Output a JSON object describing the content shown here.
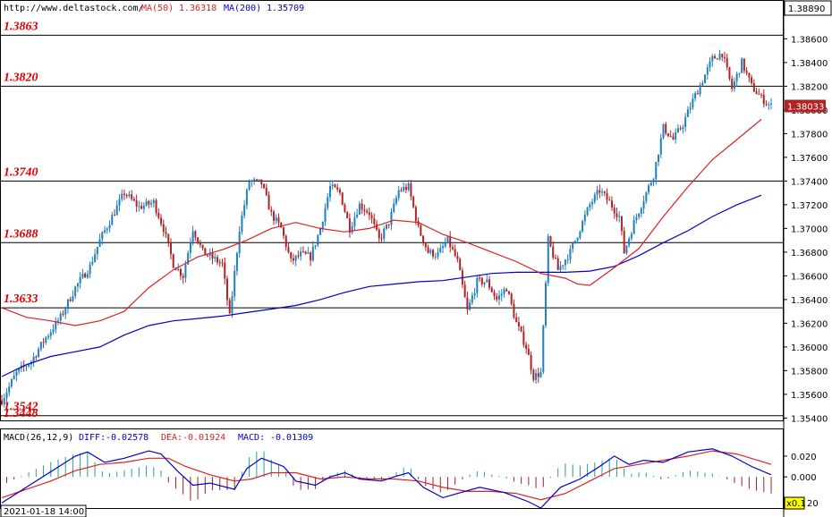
{
  "header": {
    "site": "http://www.deltastock.com/",
    "ma50_label": "MA(50)",
    "ma50_value": "1.36318",
    "ma200_label": "MA(200)",
    "ma200_value": "1.35709"
  },
  "colors": {
    "bull": "#1f7fc0",
    "bear": "#b22222",
    "ma50": "#e02020",
    "ma200": "#0000cc",
    "level_text": "#e00000"
  },
  "macd_header": {
    "name": "MACD(26,12,9)",
    "diff_label": "DIFF:",
    "diff_value": "-0.02578",
    "dea_label": "DEA:",
    "dea_value": "-0.01924",
    "macd_label": "MACD:",
    "macd_value": "-0.01309"
  },
  "footer": {
    "datetime": "2021-01-18 14:00",
    "multiplier": "x0.1",
    "multiplier_tail": "20"
  },
  "chart_data": [
    {
      "type": "candlestick",
      "ylim": [
        1.3538,
        1.3892
      ],
      "y_ticks": [
        "1.38600",
        "1.38400",
        "1.38200",
        "1.38000",
        "1.37800",
        "1.37600",
        "1.37400",
        "1.37200",
        "1.37000",
        "1.36800",
        "1.36600",
        "1.36400",
        "1.36200",
        "1.36000",
        "1.35800",
        "1.35600",
        "1.35400"
      ],
      "top_price_label": "1.38890",
      "current_price_label": "1.38033",
      "current_price": 1.38033,
      "levels": [
        {
          "label": "1.3863",
          "value": 1.3863
        },
        {
          "label": "1.3820",
          "value": 1.382
        },
        {
          "label": "1.3740",
          "value": 1.374
        },
        {
          "label": "1.3688",
          "value": 1.3688
        },
        {
          "label": "1.3633",
          "value": 1.3633
        },
        {
          "label": "1.3542",
          "value": 1.3542
        },
        {
          "label": "1.3448",
          "value": 1.3448
        }
      ],
      "close_path": [
        [
          0,
          1.3555
        ],
        [
          6,
          1.3578
        ],
        [
          12,
          1.3588
        ],
        [
          18,
          1.3608
        ],
        [
          24,
          1.3625
        ],
        [
          30,
          1.365
        ],
        [
          36,
          1.3668
        ],
        [
          40,
          1.369
        ],
        [
          45,
          1.371
        ],
        [
          50,
          1.373
        ],
        [
          56,
          1.3718
        ],
        [
          62,
          1.3722
        ],
        [
          66,
          1.37
        ],
        [
          70,
          1.367
        ],
        [
          74,
          1.366
        ],
        [
          78,
          1.37
        ],
        [
          82,
          1.368
        ],
        [
          86,
          1.3675
        ],
        [
          90,
          1.367
        ],
        [
          93,
          1.3625
        ],
        [
          97,
          1.37
        ],
        [
          101,
          1.374
        ],
        [
          106,
          1.3738
        ],
        [
          110,
          1.3712
        ],
        [
          114,
          1.37
        ],
        [
          118,
          1.3672
        ],
        [
          122,
          1.3678
        ],
        [
          126,
          1.3676
        ],
        [
          130,
          1.37
        ],
        [
          134,
          1.3735
        ],
        [
          138,
          1.373
        ],
        [
          142,
          1.37
        ],
        [
          146,
          1.372
        ],
        [
          150,
          1.3713
        ],
        [
          154,
          1.369
        ],
        [
          158,
          1.3705
        ],
        [
          162,
          1.3732
        ],
        [
          166,
          1.3735
        ],
        [
          170,
          1.37
        ],
        [
          174,
          1.368
        ],
        [
          178,
          1.3678
        ],
        [
          182,
          1.369
        ],
        [
          186,
          1.3672
        ],
        [
          190,
          1.363
        ],
        [
          194,
          1.3655
        ],
        [
          198,
          1.3655
        ],
        [
          202,
          1.364
        ],
        [
          206,
          1.365
        ],
        [
          210,
          1.362
        ],
        [
          214,
          1.36
        ],
        [
          217,
          1.3575
        ],
        [
          220,
          1.3578
        ],
        [
          223,
          1.369
        ],
        [
          227,
          1.3665
        ],
        [
          232,
          1.368
        ],
        [
          236,
          1.37
        ],
        [
          240,
          1.372
        ],
        [
          244,
          1.3732
        ],
        [
          248,
          1.3722
        ],
        [
          252,
          1.371
        ],
        [
          254,
          1.368
        ],
        [
          258,
          1.3705
        ],
        [
          262,
          1.3725
        ],
        [
          266,
          1.3745
        ],
        [
          270,
          1.3785
        ],
        [
          274,
          1.3775
        ],
        [
          278,
          1.3788
        ],
        [
          282,
          1.3808
        ],
        [
          286,
          1.3825
        ],
        [
          290,
          1.3843
        ],
        [
          294,
          1.3848
        ],
        [
          298,
          1.3818
        ],
        [
          302,
          1.384
        ],
        [
          306,
          1.382
        ],
        [
          310,
          1.381
        ],
        [
          314,
          1.3803
        ]
      ],
      "ma50": [
        [
          0,
          1.3633
        ],
        [
          10,
          1.3625
        ],
        [
          20,
          1.3622
        ],
        [
          30,
          1.3618
        ],
        [
          40,
          1.3622
        ],
        [
          50,
          1.363
        ],
        [
          60,
          1.365
        ],
        [
          70,
          1.3665
        ],
        [
          80,
          1.3676
        ],
        [
          90,
          1.3682
        ],
        [
          100,
          1.369
        ],
        [
          110,
          1.37
        ],
        [
          120,
          1.3705
        ],
        [
          130,
          1.37
        ],
        [
          140,
          1.3697
        ],
        [
          150,
          1.37
        ],
        [
          160,
          1.3707
        ],
        [
          170,
          1.3705
        ],
        [
          180,
          1.3695
        ],
        [
          190,
          1.3688
        ],
        [
          200,
          1.368
        ],
        [
          210,
          1.3672
        ],
        [
          220,
          1.3662
        ],
        [
          230,
          1.3658
        ],
        [
          235,
          1.3653
        ],
        [
          240,
          1.3652
        ],
        [
          250,
          1.3667
        ],
        [
          260,
          1.3683
        ],
        [
          270,
          1.371
        ],
        [
          280,
          1.3735
        ],
        [
          290,
          1.3758
        ],
        [
          300,
          1.3775
        ],
        [
          310,
          1.3792
        ]
      ],
      "ma200": [
        [
          0,
          1.3575
        ],
        [
          10,
          1.3585
        ],
        [
          20,
          1.3592
        ],
        [
          30,
          1.3596
        ],
        [
          40,
          1.36
        ],
        [
          50,
          1.361
        ],
        [
          60,
          1.3618
        ],
        [
          70,
          1.3622
        ],
        [
          80,
          1.3624
        ],
        [
          90,
          1.3626
        ],
        [
          100,
          1.3629
        ],
        [
          110,
          1.3632
        ],
        [
          120,
          1.3635
        ],
        [
          130,
          1.364
        ],
        [
          140,
          1.3646
        ],
        [
          150,
          1.3651
        ],
        [
          160,
          1.3653
        ],
        [
          170,
          1.3655
        ],
        [
          180,
          1.3656
        ],
        [
          190,
          1.3659
        ],
        [
          200,
          1.3662
        ],
        [
          210,
          1.3663
        ],
        [
          220,
          1.3663
        ],
        [
          230,
          1.3663
        ],
        [
          240,
          1.3664
        ],
        [
          250,
          1.3668
        ],
        [
          260,
          1.3677
        ],
        [
          270,
          1.3688
        ],
        [
          280,
          1.3698
        ],
        [
          290,
          1.371
        ],
        [
          300,
          1.372
        ],
        [
          310,
          1.3728
        ]
      ]
    },
    {
      "type": "macd",
      "ylim": [
        -0.03,
        0.032
      ],
      "y_ticks": [
        "0.020",
        "0.000"
      ],
      "diff": [
        [
          0,
          -0.025
        ],
        [
          10,
          -0.01
        ],
        [
          20,
          0.005
        ],
        [
          30,
          0.02
        ],
        [
          35,
          0.024
        ],
        [
          42,
          0.014
        ],
        [
          50,
          0.018
        ],
        [
          60,
          0.025
        ],
        [
          65,
          0.022
        ],
        [
          72,
          0.005
        ],
        [
          78,
          -0.008
        ],
        [
          85,
          -0.006
        ],
        [
          95,
          -0.012
        ],
        [
          100,
          0.008
        ],
        [
          106,
          0.018
        ],
        [
          115,
          0.01
        ],
        [
          120,
          -0.004
        ],
        [
          128,
          -0.008
        ],
        [
          134,
          0.0
        ],
        [
          140,
          0.004
        ],
        [
          146,
          -0.002
        ],
        [
          155,
          -0.004
        ],
        [
          160,
          0.0
        ],
        [
          166,
          0.004
        ],
        [
          172,
          -0.01
        ],
        [
          180,
          -0.02
        ],
        [
          186,
          -0.016
        ],
        [
          195,
          -0.01
        ],
        [
          205,
          -0.015
        ],
        [
          215,
          -0.024
        ],
        [
          220,
          -0.03
        ],
        [
          228,
          -0.01
        ],
        [
          236,
          -0.002
        ],
        [
          244,
          0.01
        ],
        [
          250,
          0.02
        ],
        [
          256,
          0.012
        ],
        [
          262,
          0.016
        ],
        [
          270,
          0.014
        ],
        [
          280,
          0.024
        ],
        [
          290,
          0.027
        ],
        [
          298,
          0.02
        ],
        [
          306,
          0.01
        ],
        [
          314,
          0.002
        ]
      ],
      "dea": [
        [
          0,
          -0.02
        ],
        [
          10,
          -0.012
        ],
        [
          20,
          -0.004
        ],
        [
          30,
          0.006
        ],
        [
          40,
          0.012
        ],
        [
          50,
          0.014
        ],
        [
          60,
          0.018
        ],
        [
          68,
          0.018
        ],
        [
          75,
          0.01
        ],
        [
          85,
          0.002
        ],
        [
          95,
          -0.004
        ],
        [
          102,
          -0.002
        ],
        [
          110,
          0.004
        ],
        [
          120,
          0.004
        ],
        [
          130,
          -0.002
        ],
        [
          140,
          0.0
        ],
        [
          150,
          -0.002
        ],
        [
          160,
          -0.002
        ],
        [
          170,
          -0.004
        ],
        [
          180,
          -0.01
        ],
        [
          190,
          -0.014
        ],
        [
          200,
          -0.014
        ],
        [
          210,
          -0.016
        ],
        [
          220,
          -0.022
        ],
        [
          230,
          -0.016
        ],
        [
          240,
          -0.004
        ],
        [
          250,
          0.008
        ],
        [
          260,
          0.012
        ],
        [
          270,
          0.016
        ],
        [
          280,
          0.02
        ],
        [
          290,
          0.025
        ],
        [
          300,
          0.022
        ],
        [
          314,
          0.012
        ]
      ]
    }
  ]
}
